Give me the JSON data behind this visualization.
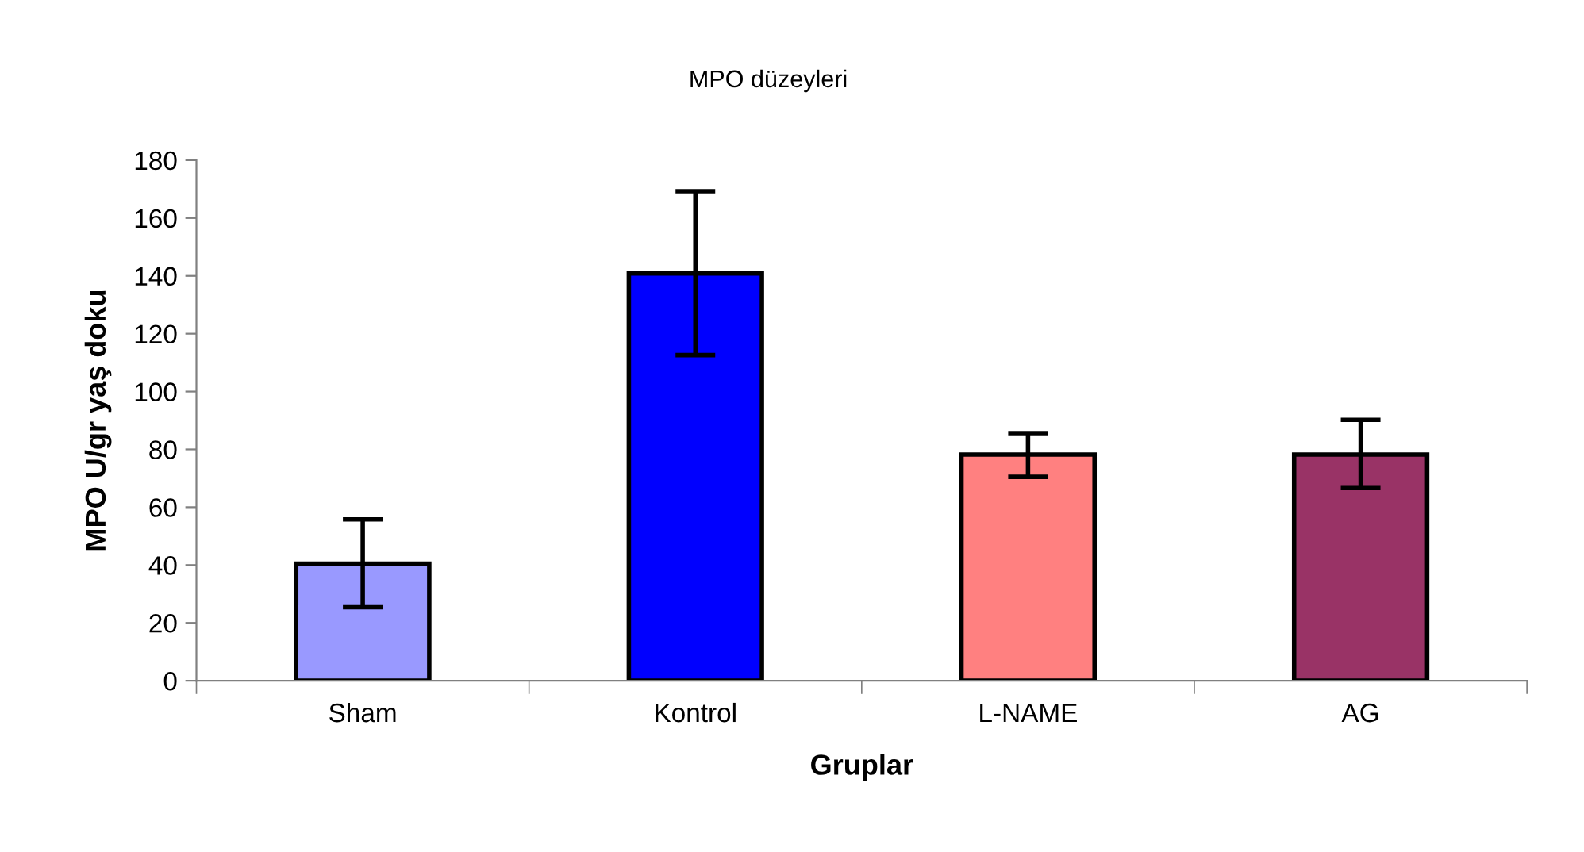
{
  "chart_data": {
    "type": "bar",
    "title": "MPO düzeyleri",
    "xlabel": "Gruplar",
    "ylabel": "MPO U/gr yaş doku",
    "categories": [
      "Sham",
      "Kontrol",
      "L-NAME",
      "AG"
    ],
    "values": [
      40.5,
      140.8,
      78.2,
      78.2
    ],
    "colors": [
      "#9999ff",
      "#0000ff",
      "#ff8080",
      "#993366"
    ],
    "errors": [
      [
        25.4,
        55.8
      ],
      [
        112.6,
        169.3
      ],
      [
        70.5,
        85.6
      ],
      [
        66.6,
        90.2
      ]
    ],
    "ylim": [
      0,
      180
    ],
    "yticks": [
      0,
      20,
      40,
      60,
      80,
      100,
      120,
      140,
      160,
      180
    ],
    "grid": false
  }
}
